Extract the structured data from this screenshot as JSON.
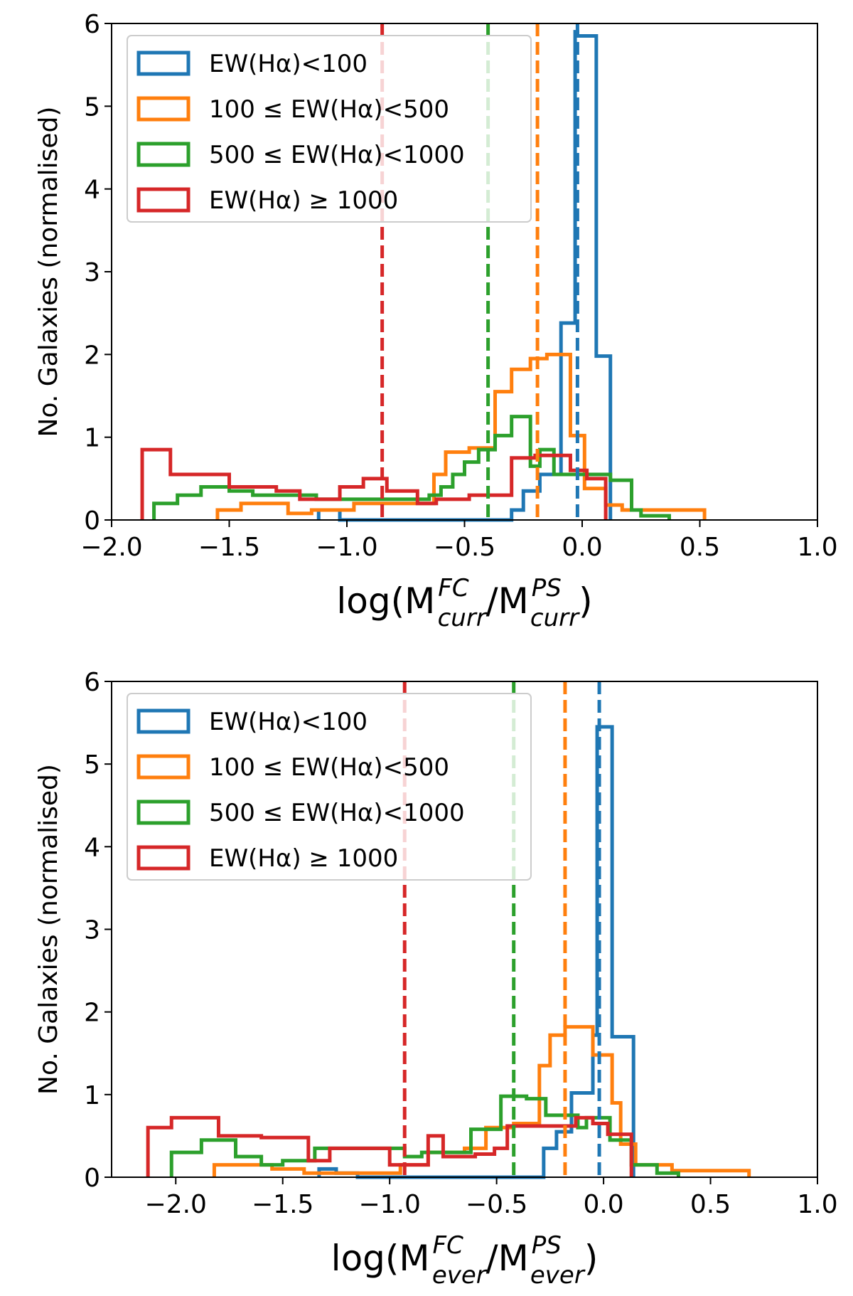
{
  "colors": {
    "blue": "#1f77b4",
    "orange": "#ff7f0e",
    "green": "#2ca02c",
    "red": "#d62728"
  },
  "chart_data": [
    {
      "type": "histogram-step",
      "ylabel": "No. Galaxies (normalised)",
      "xlabel": {
        "base": "log(M",
        "sup1": "FC",
        "sub1": "curr",
        "mid": "/M",
        "sup2": "PS",
        "sub2": "curr",
        "end": ")"
      },
      "xlim": [
        -2.0,
        1.0
      ],
      "ylim": [
        0,
        6
      ],
      "xticks": [
        -2.0,
        -1.5,
        -1.0,
        -0.5,
        0.0,
        0.5,
        1.0
      ],
      "xtick_labels": [
        "−2.0",
        "−1.5",
        "−1.0",
        "−0.5",
        "0.0",
        "0.5",
        "1.0"
      ],
      "yticks": [
        0,
        1,
        2,
        3,
        4,
        5,
        6
      ],
      "ytick_labels": [
        "0",
        "1",
        "2",
        "3",
        "4",
        "5",
        "6"
      ],
      "legend_position": "top-left",
      "series": [
        {
          "name": "EW(Hα)<100",
          "color": "blue",
          "edges": [
            -1.12,
            -1.03,
            -0.96,
            -0.3,
            -0.25,
            -0.18,
            -0.09,
            -0.03,
            -0.02,
            -0.01,
            0.06,
            0.12
          ],
          "values": [
            0.12,
            0,
            0,
            0.12,
            0.35,
            0.55,
            2.38,
            5.9,
            5.85,
            5.85,
            1.98
          ],
          "median": -0.02
        },
        {
          "name": "100 ≤ EW(Hα)<500",
          "color": "orange",
          "edges": [
            -1.55,
            -1.45,
            -1.25,
            -1.15,
            -0.97,
            -0.63,
            -0.58,
            -0.48,
            -0.37,
            -0.3,
            -0.22,
            -0.15,
            -0.05,
            0.01,
            0.1,
            0.17,
            0.37,
            0.52
          ],
          "values": [
            0.12,
            0.2,
            0.08,
            0.12,
            0.2,
            0.55,
            0.82,
            0.87,
            1.55,
            1.82,
            1.95,
            2.0,
            1.02,
            0.38,
            0.18,
            0.12,
            0.12
          ],
          "median": -0.19
        },
        {
          "name": "500 ≤ EW(Hα)<1000",
          "color": "green",
          "edges": [
            -1.82,
            -1.72,
            -1.62,
            -1.5,
            -1.4,
            -1.13,
            -0.7,
            -0.65,
            -0.6,
            -0.55,
            -0.5,
            -0.48,
            -0.44,
            -0.37,
            -0.3,
            -0.22,
            -0.18,
            -0.12,
            -0.07,
            0.12,
            0.21,
            0.25,
            0.37
          ],
          "values": [
            0.2,
            0.3,
            0.4,
            0.35,
            0.3,
            0.25,
            0.25,
            0.3,
            0.4,
            0.55,
            0.7,
            0.7,
            0.85,
            1.02,
            1.25,
            0.65,
            0.85,
            0.55,
            0.55,
            0.48,
            0.12,
            0.05
          ],
          "median": -0.4
        },
        {
          "name": "EW(Hα) ≥ 1000",
          "color": "red",
          "edges": [
            -1.87,
            -1.75,
            -1.5,
            -1.3,
            -1.2,
            -1.03,
            -0.93,
            -0.83,
            -0.75,
            -0.7,
            -0.62,
            -0.48,
            -0.3,
            -0.2,
            -0.15,
            -0.05,
            0.02,
            0.1
          ],
          "values": [
            0.85,
            0.55,
            0.4,
            0.35,
            0.25,
            0.4,
            0.5,
            0.35,
            0.35,
            0.2,
            0.25,
            0.3,
            0.75,
            0.78,
            0.78,
            0.6,
            0.5
          ],
          "median": -0.85
        }
      ]
    },
    {
      "type": "histogram-step",
      "ylabel": "No. Galaxies (normalised)",
      "xlabel": {
        "base": "log(M",
        "sup1": "FC",
        "sub1": "ever",
        "mid": "/M",
        "sup2": "PS",
        "sub2": "ever",
        "end": ")"
      },
      "xlim": [
        -2.3,
        1.0
      ],
      "ylim": [
        0,
        6
      ],
      "xticks": [
        -2.0,
        -1.5,
        -1.0,
        -0.5,
        0.0,
        0.5,
        1.0
      ],
      "xtick_labels": [
        "−2.0",
        "−1.5",
        "−1.0",
        "−0.5",
        "0.0",
        "0.5",
        "1.0"
      ],
      "yticks": [
        0,
        1,
        2,
        3,
        4,
        5,
        6
      ],
      "ytick_labels": [
        "0",
        "1",
        "2",
        "3",
        "4",
        "5",
        "6"
      ],
      "legend_position": "top-left",
      "series": [
        {
          "name": "EW(Hα)<100",
          "color": "blue",
          "edges": [
            -1.33,
            -1.25,
            -1.15,
            -0.9,
            -0.28,
            -0.22,
            -0.15,
            -0.12,
            -0.05,
            -0.03,
            0.04,
            0.14
          ],
          "values": [
            0.1,
            0.05,
            0,
            0,
            0.35,
            0.55,
            1.02,
            1.02,
            1.72,
            5.45,
            1.7
          ],
          "median": -0.02
        },
        {
          "name": "100 ≤ EW(Hα)<500",
          "color": "orange",
          "edges": [
            -1.82,
            -1.7,
            -1.55,
            -1.4,
            -1.25,
            -0.95,
            -0.82,
            -0.65,
            -0.55,
            -0.42,
            -0.3,
            -0.25,
            -0.18,
            -0.05,
            0.04,
            0.08,
            0.15,
            0.32,
            0.52,
            0.68
          ],
          "values": [
            0.15,
            0.15,
            0.1,
            0.05,
            0.05,
            0.15,
            0.3,
            0.35,
            0.6,
            0.65,
            1.35,
            1.72,
            1.82,
            1.48,
            0.9,
            0.4,
            0.15,
            0.08,
            0.08
          ],
          "median": -0.18
        },
        {
          "name": "500 ≤ EW(Hα)<1000",
          "color": "green",
          "edges": [
            -2.02,
            -1.88,
            -1.72,
            -1.6,
            -1.5,
            -1.35,
            -0.93,
            -0.85,
            -0.62,
            -0.48,
            -0.36,
            -0.27,
            -0.2,
            -0.12,
            -0.08,
            0.03,
            0.13,
            0.25,
            0.35
          ],
          "values": [
            0.3,
            0.45,
            0.25,
            0.15,
            0.2,
            0.35,
            0.25,
            0.3,
            0.58,
            0.98,
            0.95,
            0.75,
            0.75,
            0.6,
            0.72,
            0.45,
            0.15,
            0.05
          ],
          "median": -0.42
        },
        {
          "name": "EW(Hα) ≥ 1000",
          "color": "red",
          "edges": [
            -2.13,
            -2.02,
            -1.8,
            -1.6,
            -1.55,
            -1.38,
            -1.28,
            -1.23,
            -1.0,
            -0.82,
            -0.75,
            -0.6,
            -0.51,
            -0.45,
            -0.32,
            -0.2,
            -0.13,
            -0.05,
            0.02,
            0.13
          ],
          "values": [
            0.6,
            0.72,
            0.5,
            0.48,
            0.48,
            0.2,
            0.35,
            0.35,
            0.15,
            0.5,
            0.25,
            0.28,
            0.35,
            0.62,
            0.62,
            0.62,
            0.72,
            0.65,
            0.52
          ],
          "median": -0.93
        }
      ]
    }
  ]
}
